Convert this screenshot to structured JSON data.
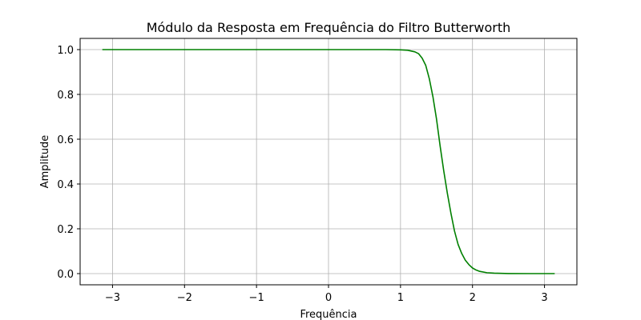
{
  "chart_data": {
    "type": "line",
    "title": "Módulo da Resposta em Frequência do Filtro Butterworth",
    "xlabel": "Frequência",
    "ylabel": "Amplitude",
    "xlim": [
      -3.45,
      3.45
    ],
    "ylim": [
      -0.05,
      1.05
    ],
    "xticks": [
      -3,
      -2,
      -1,
      0,
      1,
      2,
      3
    ],
    "xtick_labels": [
      "−3",
      "−2",
      "−1",
      "0",
      "1",
      "2",
      "3"
    ],
    "yticks": [
      0.0,
      0.2,
      0.4,
      0.6,
      0.8,
      1.0
    ],
    "ytick_labels": [
      "0.0",
      "0.2",
      "0.4",
      "0.6",
      "0.8",
      "1.0"
    ],
    "grid": true,
    "series": [
      {
        "color": "#008000",
        "x": [
          -3.1416,
          -2.5,
          -2.0,
          -1.5,
          -1.0,
          -0.5,
          0.0,
          0.5,
          0.8,
          1.0,
          1.1,
          1.2,
          1.25,
          1.3,
          1.35,
          1.4,
          1.45,
          1.5,
          1.55,
          1.6,
          1.65,
          1.7,
          1.75,
          1.8,
          1.85,
          1.9,
          1.95,
          2.0,
          2.05,
          2.1,
          2.2,
          2.3,
          2.5,
          2.8,
          3.1416
        ],
        "y": [
          1.0,
          1.0,
          1.0,
          1.0,
          1.0,
          1.0,
          1.0,
          1.0,
          1.0,
          0.999,
          0.997,
          0.99,
          0.982,
          0.962,
          0.93,
          0.87,
          0.79,
          0.69,
          0.57,
          0.46,
          0.36,
          0.27,
          0.19,
          0.13,
          0.09,
          0.06,
          0.04,
          0.025,
          0.016,
          0.01,
          0.004,
          0.002,
          0.0003,
          0.0,
          0.0
        ]
      }
    ]
  }
}
